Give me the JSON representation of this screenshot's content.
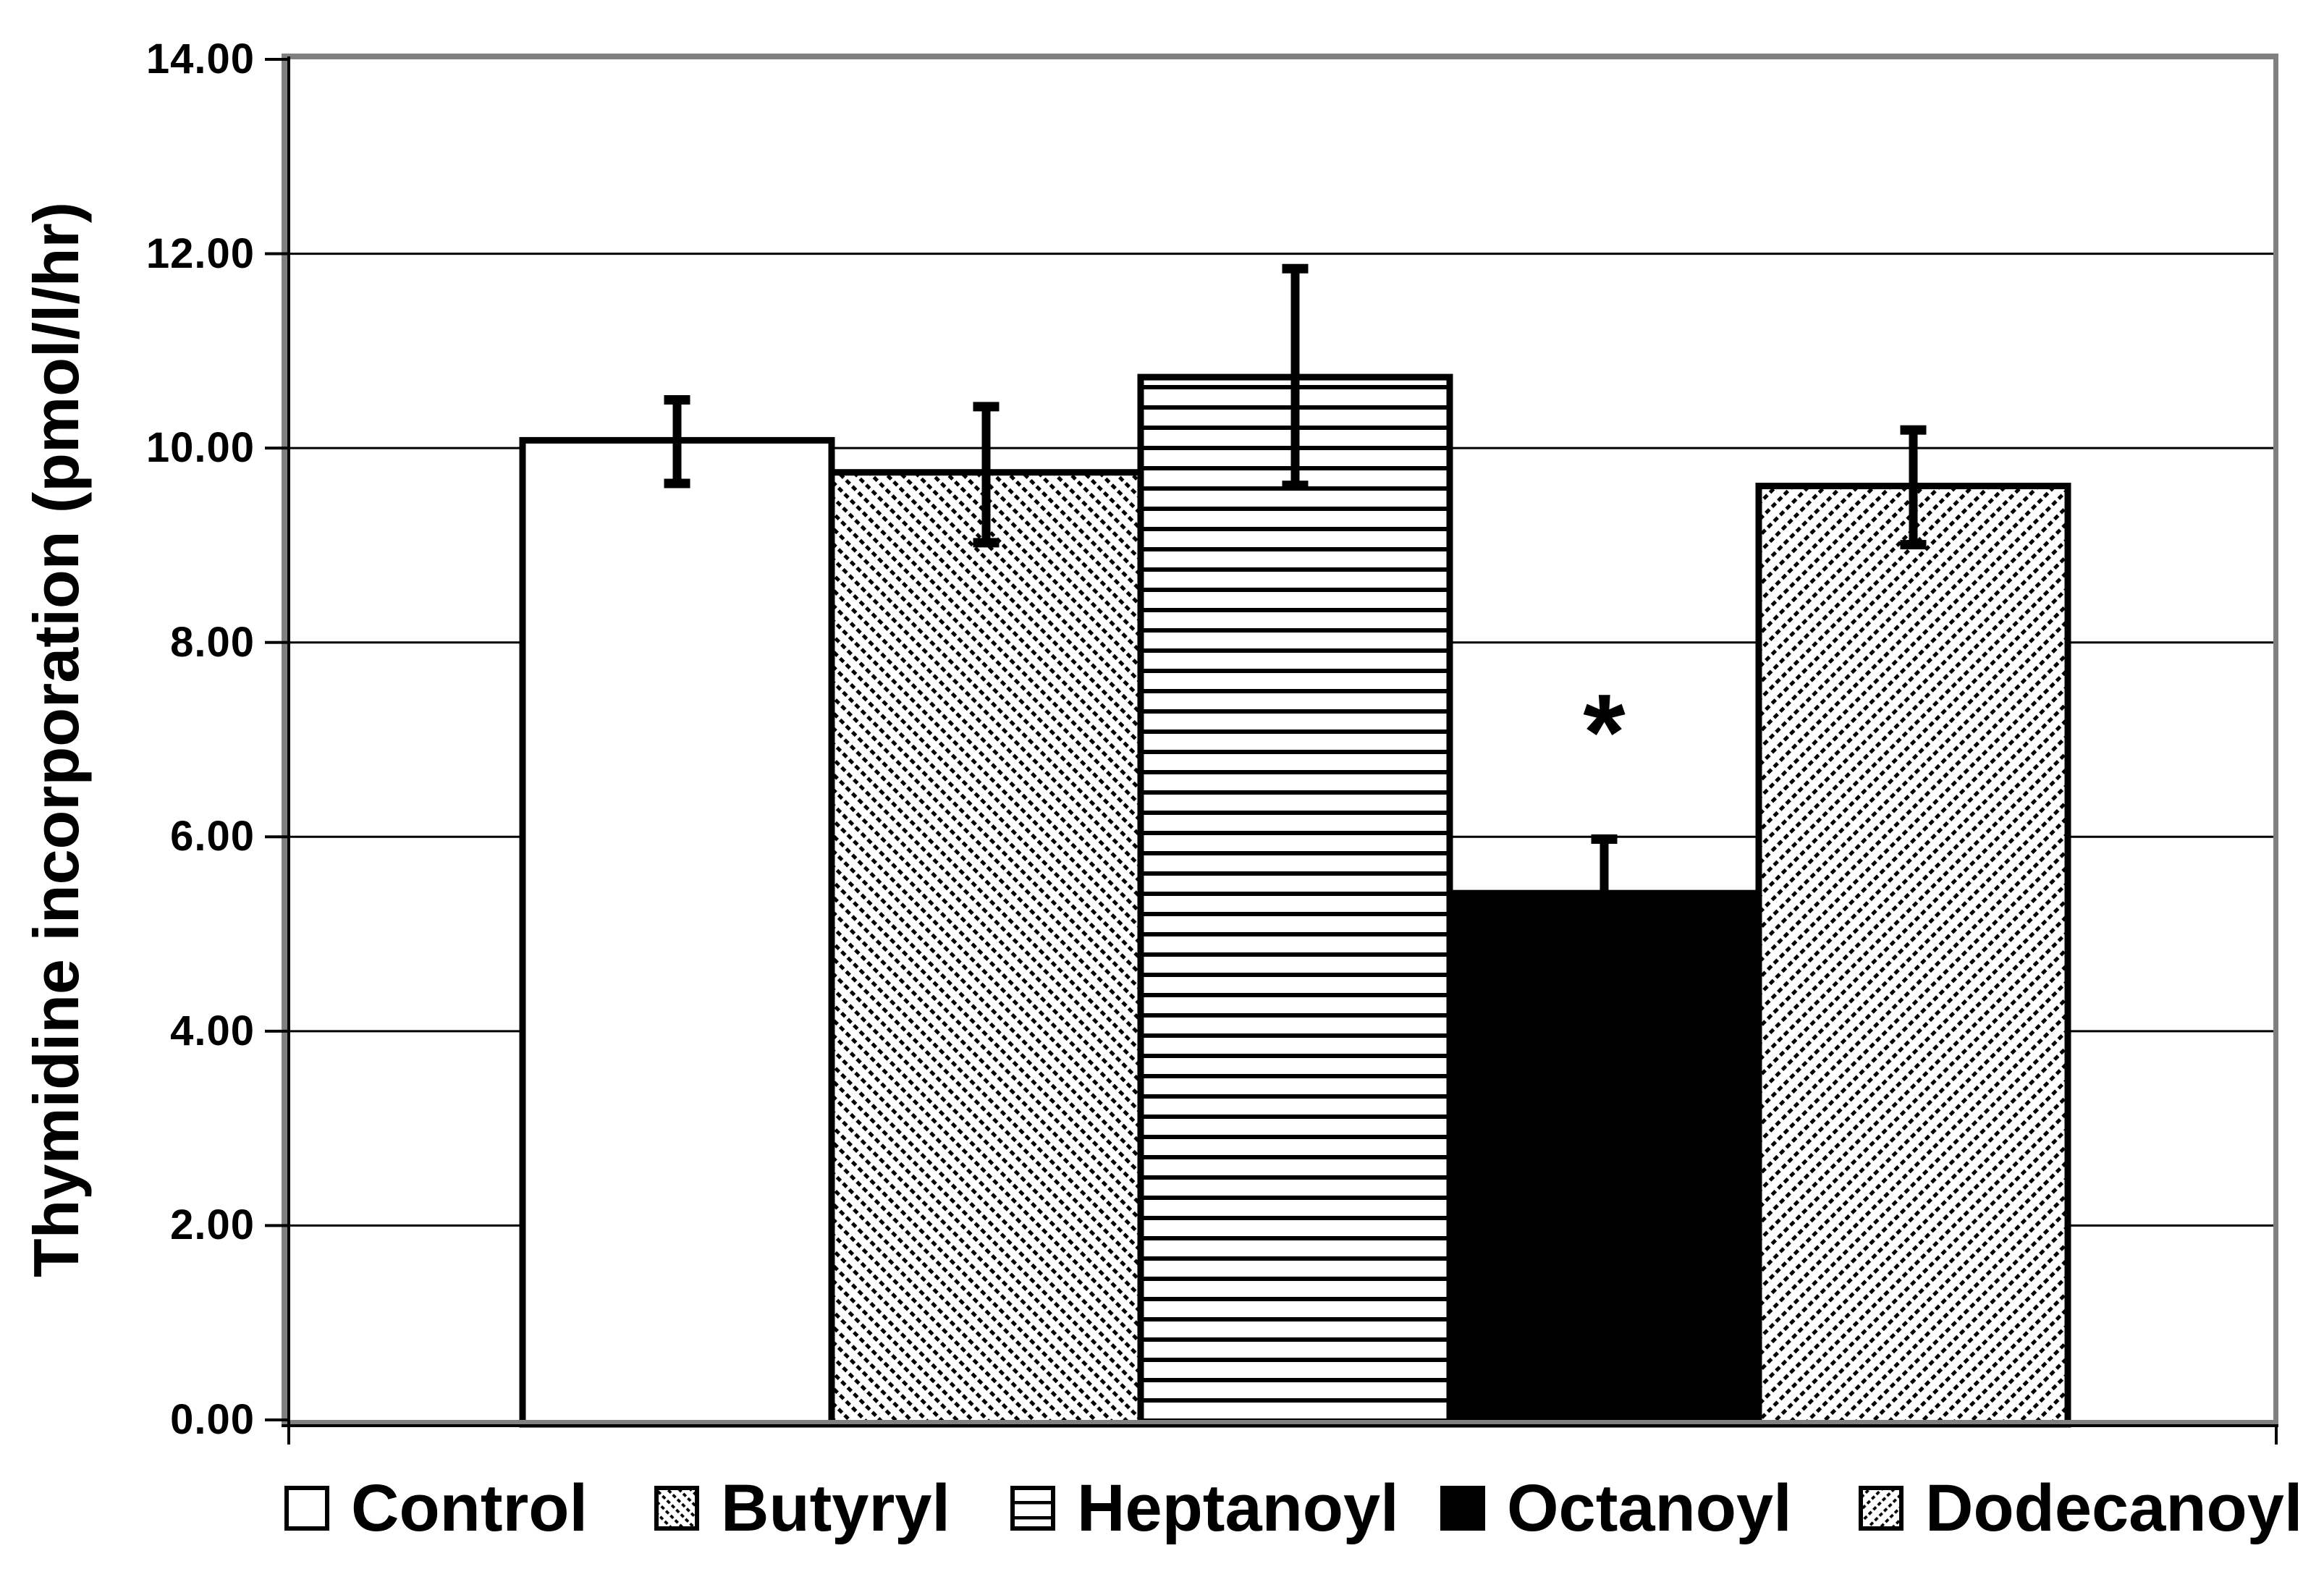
{
  "chart_data": {
    "type": "bar",
    "title": "",
    "ylabel": "Thymidine incorporation (pmol/l/hr)",
    "xlabel": "",
    "ylim": [
      0,
      14
    ],
    "ytick_values": [
      14,
      12,
      10,
      8,
      6,
      4,
      2,
      0
    ],
    "ytick_labels": [
      "14.00",
      "12.00",
      "10.00",
      "8.00",
      "6.00",
      "4.00",
      "2.00",
      "0.00"
    ],
    "gridline_values": [
      2,
      4,
      6,
      8,
      10,
      12
    ],
    "grid": true,
    "legend_position": "bottom",
    "categories": [
      "Control",
      "Butyryl",
      "Heptanoyl",
      "Octanoyl",
      "Dodecanoyl"
    ],
    "series": [
      {
        "name": "Control",
        "value": 10.08,
        "err_low": 9.64,
        "err_high": 10.5,
        "pattern": "plain"
      },
      {
        "name": "Butyryl",
        "value": 9.75,
        "err_low": 9.03,
        "err_high": 10.43,
        "pattern": "diag-down"
      },
      {
        "name": "Heptanoyl",
        "value": 10.73,
        "err_low": 9.62,
        "err_high": 11.85,
        "pattern": "horizontal"
      },
      {
        "name": "Octanoyl",
        "value": 5.42,
        "err_low": null,
        "err_high": 5.98,
        "pattern": "solid"
      },
      {
        "name": "Dodecanoyl",
        "value": 9.61,
        "err_low": 9.01,
        "err_high": 10.19,
        "pattern": "diag-up"
      }
    ],
    "annotations": [
      {
        "text": "*",
        "series": "Octanoyl",
        "y": 7.25
      }
    ]
  },
  "colors": {
    "background": "#ffffff",
    "ink": "#000000",
    "plot_border_gray": "#808080",
    "bar_fill_light": "#ffffff",
    "bar_fill_dark": "#000000"
  }
}
